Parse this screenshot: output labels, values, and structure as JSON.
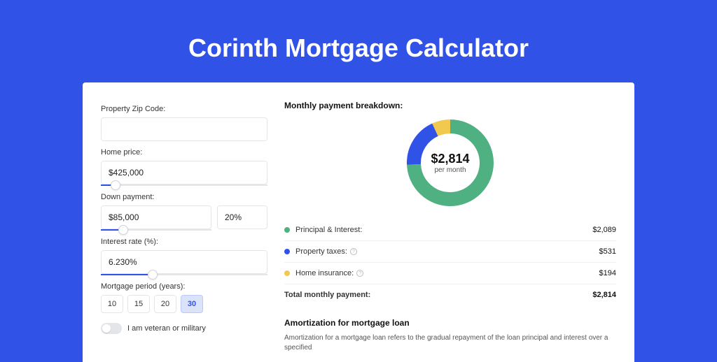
{
  "page": {
    "title": "Corinth Mortgage Calculator"
  },
  "form": {
    "zip": {
      "label": "Property Zip Code:",
      "value": ""
    },
    "price": {
      "label": "Home price:",
      "value": "$425,000",
      "slider_pct": 9
    },
    "down": {
      "label": "Down payment:",
      "value": "$85,000",
      "pct": "20%",
      "slider_pct": 20
    },
    "rate": {
      "label": "Interest rate (%):",
      "value": "6.230%",
      "slider_pct": 31
    },
    "period": {
      "label": "Mortgage period (years):",
      "options": [
        "10",
        "15",
        "20",
        "30"
      ],
      "selected": "30"
    },
    "veteran": {
      "label": "I am veteran or military",
      "value": false
    }
  },
  "breakdown": {
    "title": "Monthly payment breakdown:",
    "amount": "$2,814",
    "sub": "per month",
    "items": [
      {
        "key": "principal",
        "label": "Principal & Interest:",
        "value": "$2,089",
        "color": "#4fb082",
        "pct": 74.2,
        "info": false
      },
      {
        "key": "taxes",
        "label": "Property taxes:",
        "value": "$531",
        "color": "#3152e7",
        "pct": 18.9,
        "info": true
      },
      {
        "key": "insurance",
        "label": "Home insurance:",
        "value": "$194",
        "color": "#f1c94e",
        "pct": 6.9,
        "info": true
      }
    ],
    "total_label": "Total monthly payment:",
    "total_value": "$2,814"
  },
  "amort": {
    "title": "Amortization for mortgage loan",
    "text": "Amortization for a mortgage loan refers to the gradual repayment of the loan principal and interest over a specified"
  },
  "style": {
    "donut_r": 52,
    "donut_stroke": 20,
    "background": "#3152e7"
  }
}
